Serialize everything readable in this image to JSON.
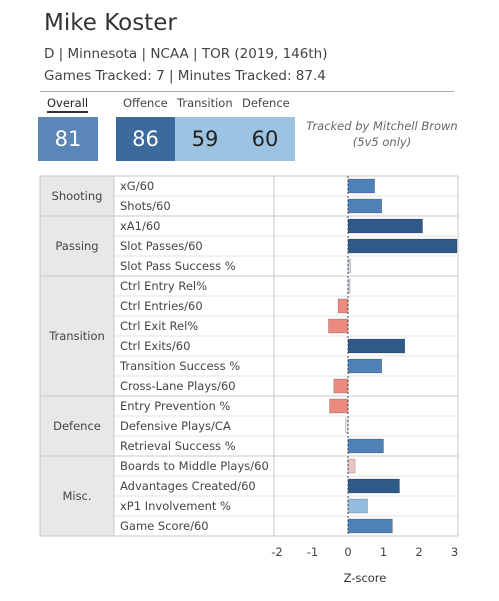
{
  "player": {
    "name": "Mike Koster",
    "info": "D | Minnesota | NCAA | TOR (2019, 146th)",
    "tracked": "Games Tracked: 7 | Minutes Tracked: 87.4"
  },
  "scores": {
    "overall_label": "Overall",
    "overall": "81",
    "offence_label": "Offence",
    "offence": "86",
    "transition_label": "Transition",
    "transition": "59",
    "defence_label": "Defence",
    "defence": "60",
    "tracker_note": "Tracked by Mitchell Brown (5v5 only)"
  },
  "colors": {
    "strong_positive": "#2e5a8a",
    "positive": "#4f82b8",
    "mild_positive": "#94bde0",
    "neutral_positive": "#cfd8e2",
    "mild_negative": "#e8c6c2",
    "negative": "#ec8a80",
    "score_overall": "#5b87b8",
    "score_offence": "#3d6a9c",
    "score_light": "#9dc3e2",
    "group_bg": "#e8e8e8"
  },
  "chart_data": {
    "type": "bar",
    "orientation": "horizontal",
    "xlabel": "Z-score",
    "xlim": [
      -2,
      3
    ],
    "xticks": [
      -2,
      -1,
      0,
      1,
      2,
      3
    ],
    "groups": [
      {
        "name": "Shooting",
        "metrics": [
          {
            "label": "xG/60",
            "value": 0.75,
            "color": "#4f82b8"
          },
          {
            "label": "Shots/60",
            "value": 0.95,
            "color": "#4f82b8"
          }
        ]
      },
      {
        "name": "Passing",
        "metrics": [
          {
            "label": "xA1/60",
            "value": 2.1,
            "color": "#2e5a8a"
          },
          {
            "label": "Slot Passes/60",
            "value": 3.1,
            "color": "#2e5a8a"
          },
          {
            "label": "Slot Pass Success %",
            "value": 0.07,
            "color": "#cfd8e2"
          }
        ]
      },
      {
        "name": "Transition",
        "metrics": [
          {
            "label": "Ctrl Entry Rel%",
            "value": 0.03,
            "color": "#cfd8e2"
          },
          {
            "label": "Ctrl Entries/60",
            "value": -0.28,
            "color": "#ec8a80"
          },
          {
            "label": "Ctrl Exit Rel%",
            "value": -0.55,
            "color": "#ec8a80"
          },
          {
            "label": "Ctrl Exits/60",
            "value": 1.6,
            "color": "#2e5a8a"
          },
          {
            "label": "Transition Success %",
            "value": 0.95,
            "color": "#4f82b8"
          },
          {
            "label": "Cross-Lane Plays/60",
            "value": -0.4,
            "color": "#ec8a80"
          }
        ]
      },
      {
        "name": "Defence",
        "metrics": [
          {
            "label": "Entry Prevention %",
            "value": -0.52,
            "color": "#ec8a80"
          },
          {
            "label": "Defensive Plays/CA",
            "value": -0.07,
            "color": "#e8e8e8"
          },
          {
            "label": "Retrieval Success %",
            "value": 1.0,
            "color": "#4f82b8"
          }
        ]
      },
      {
        "name": "Misc.",
        "metrics": [
          {
            "label": "Boards to Middle Plays/60",
            "value": 0.2,
            "color": "#e8c6c2"
          },
          {
            "label": "Advantages Created/60",
            "value": 1.45,
            "color": "#2e5a8a"
          },
          {
            "label": "xP1 Involvement %",
            "value": 0.55,
            "color": "#94bde0"
          },
          {
            "label": "Game Score/60",
            "value": 1.25,
            "color": "#4f82b8"
          }
        ]
      }
    ]
  }
}
